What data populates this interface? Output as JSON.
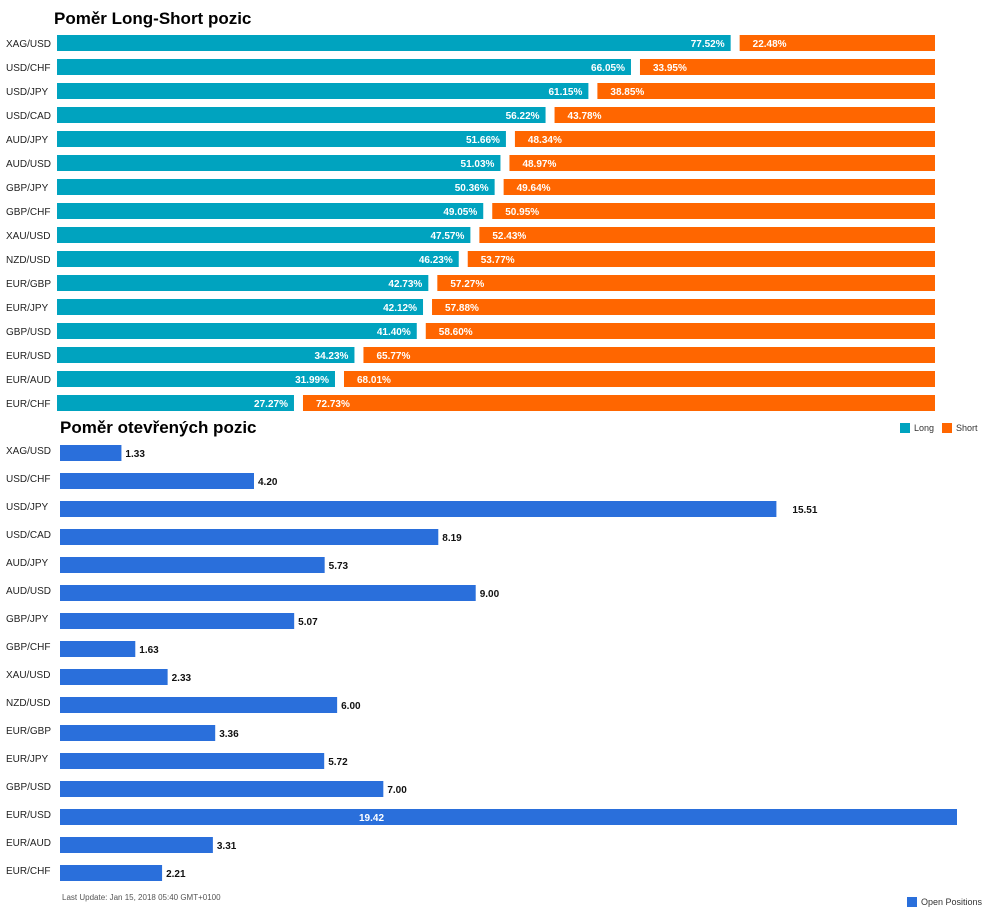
{
  "chart_data": [
    {
      "type": "bar",
      "title": "Poměr Long-Short pozic",
      "stacked": true,
      "orientation": "horizontal",
      "unit": "%",
      "categories": [
        "XAG/USD",
        "USD/CHF",
        "USD/JPY",
        "USD/CAD",
        "AUD/JPY",
        "AUD/USD",
        "GBP/JPY",
        "GBP/CHF",
        "XAU/USD",
        "NZD/USD",
        "EUR/GBP",
        "EUR/JPY",
        "GBP/USD",
        "EUR/USD",
        "EUR/AUD",
        "EUR/CHF"
      ],
      "series": [
        {
          "name": "Long",
          "color": "#00a3bf",
          "values": [
            77.52,
            66.05,
            61.15,
            56.22,
            51.66,
            51.03,
            50.36,
            49.05,
            47.57,
            46.23,
            42.73,
            42.12,
            41.4,
            34.23,
            31.99,
            27.27
          ]
        },
        {
          "name": "Short",
          "color": "#ff6600",
          "values": [
            22.48,
            33.95,
            38.85,
            43.78,
            48.34,
            48.97,
            49.64,
            50.95,
            52.43,
            53.77,
            57.27,
            57.88,
            58.6,
            65.77,
            68.01,
            72.73
          ]
        }
      ],
      "xlim": [
        0,
        100
      ],
      "legend": "right",
      "grid": false
    },
    {
      "type": "bar",
      "title": "Poměr otevřených pozic",
      "orientation": "horizontal",
      "categories": [
        "XAG/USD",
        "USD/CHF",
        "USD/JPY",
        "USD/CAD",
        "AUD/JPY",
        "AUD/USD",
        "GBP/JPY",
        "GBP/CHF",
        "XAU/USD",
        "NZD/USD",
        "EUR/GBP",
        "EUR/JPY",
        "GBP/USD",
        "EUR/USD",
        "EUR/AUD",
        "EUR/CHF"
      ],
      "series": [
        {
          "name": "Open Positions",
          "color": "#2a6fdb",
          "values": [
            1.33,
            4.2,
            15.51,
            8.19,
            5.73,
            9.0,
            5.07,
            1.63,
            2.33,
            6.0,
            3.36,
            5.72,
            7.0,
            19.42,
            3.31,
            2.21
          ]
        }
      ],
      "xlim": [
        0,
        19.42
      ],
      "legend": "bottom-right",
      "grid": false
    }
  ],
  "legend_top": [
    {
      "name": "Long",
      "color": "#00a3bf"
    },
    {
      "name": "Short",
      "color": "#ff6600"
    }
  ],
  "legend_bottom": [
    {
      "name": "Open Positions",
      "color": "#2a6fdb"
    }
  ],
  "footnote": "Last Update: Jan 15, 2018 05:40 GMT+0100"
}
